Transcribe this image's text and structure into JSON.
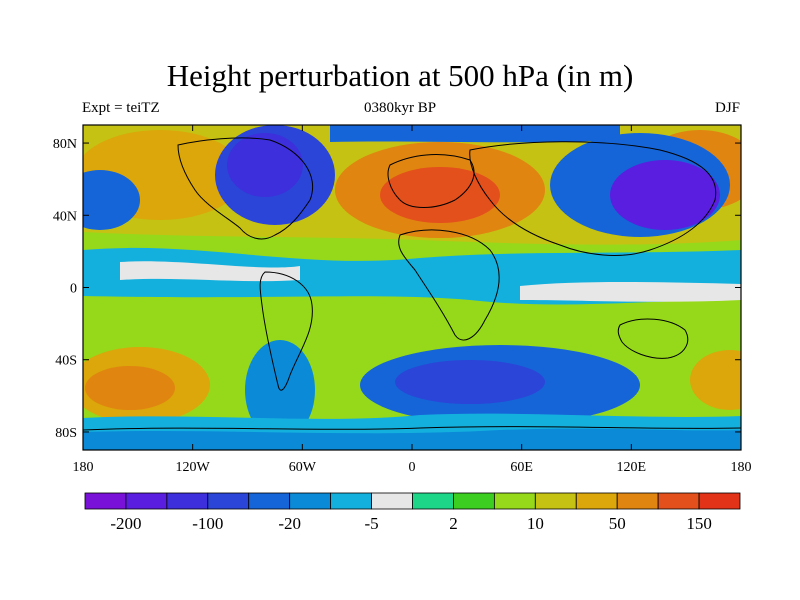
{
  "title": "Height perturbation at 500 hPa (in m)",
  "subtitle_left": "Expt = teiTZ",
  "subtitle_center": "0380kyr BP",
  "subtitle_right": "DJF",
  "map": {
    "lon_ticks": [
      "180",
      "120W",
      "60W",
      "0",
      "60E",
      "120E",
      "180"
    ],
    "lat_ticks": [
      "80N",
      "40N",
      "0",
      "40S",
      "80S"
    ]
  },
  "colorbar": {
    "colors": [
      "#7a11d9",
      "#5a1ee0",
      "#3d2fdb",
      "#2a45d8",
      "#1565d8",
      "#0b8ad8",
      "#14b0dd",
      "#e7e7e7",
      "#1ed688",
      "#3ccf22",
      "#96d91b",
      "#c5c213",
      "#dba70a",
      "#e08510",
      "#e3501c",
      "#e23217"
    ],
    "labels": [
      "-200",
      "-100",
      "-20",
      "-5",
      "2",
      "10",
      "50",
      "150"
    ]
  },
  "regions": [
    {
      "name": "alaska-pacific-high",
      "color": "#dba70a"
    },
    {
      "name": "canada-low",
      "color": "#3d2fdb"
    },
    {
      "name": "europe-high",
      "color": "#e3501c"
    },
    {
      "name": "siberia-low",
      "color": "#5a1ee0"
    },
    {
      "name": "southern-ocean-low",
      "color": "#2a45d8"
    },
    {
      "name": "south-pacific-high",
      "color": "#e08510"
    }
  ]
}
